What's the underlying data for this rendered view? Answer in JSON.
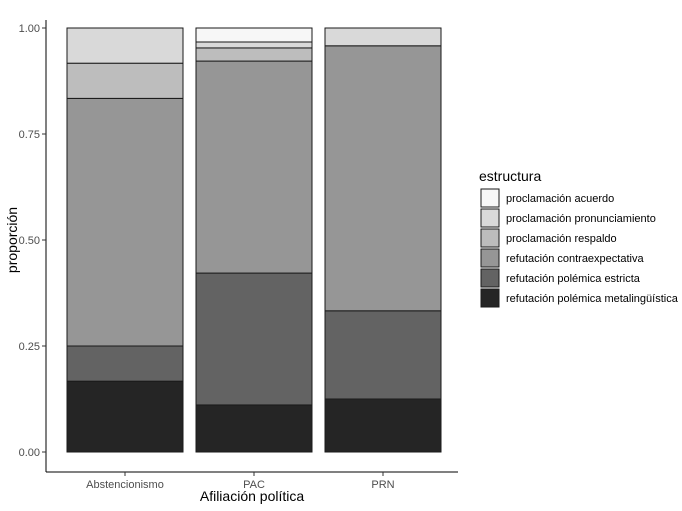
{
  "chart_data": {
    "type": "bar",
    "stacked": true,
    "xlabel": "Afiliación política",
    "ylabel": "proporción",
    "ylim": [
      0,
      1
    ],
    "yticks": [
      "0.00",
      "0.25",
      "0.50",
      "0.75",
      "1.00"
    ],
    "categories": [
      "Abstencionismo",
      "PAC",
      "PRN"
    ],
    "legend_title": "estructura",
    "legend_position": "right",
    "grid": false,
    "series": [
      {
        "name": "proclamación acuerdo",
        "color": "#f7f7f7",
        "values": [
          0.0,
          0.033,
          0.0
        ]
      },
      {
        "name": "proclamación pronunciamiento",
        "color": "#d9d9d9",
        "values": [
          0.083,
          0.014,
          0.042
        ]
      },
      {
        "name": "proclamación respaldo",
        "color": "#bdbdbd",
        "values": [
          0.083,
          0.031,
          0.0
        ]
      },
      {
        "name": "refutación contraexpectativa",
        "color": "#969696",
        "values": [
          0.584,
          0.5,
          0.625
        ]
      },
      {
        "name": "refutación polémica estricta",
        "color": "#636363",
        "values": [
          0.083,
          0.311,
          0.208
        ]
      },
      {
        "name": "refutación polémica metalingüística",
        "color": "#252525",
        "values": [
          0.167,
          0.111,
          0.125
        ]
      }
    ]
  }
}
